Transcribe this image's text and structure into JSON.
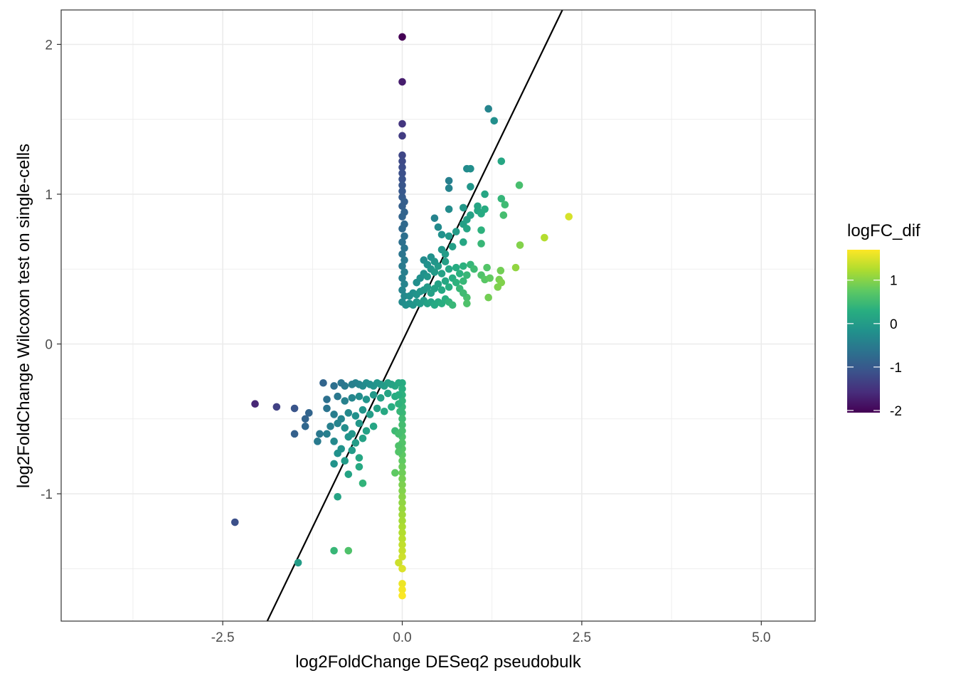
{
  "chart_data": {
    "type": "scatter",
    "title": "",
    "xlabel": "log2FoldChange DESeq2 pseudobulk",
    "ylabel": "log2FoldChange Wilcoxon test on single-cells",
    "xlim": [
      -4.75,
      5.75
    ],
    "ylim": [
      -1.85,
      2.23
    ],
    "x_ticks": [
      -2.5,
      0.0,
      2.5,
      5.0
    ],
    "x_tick_labels": [
      "-2.5",
      "0.0",
      "2.5",
      "5.0"
    ],
    "y_ticks": [
      -1,
      0,
      1,
      2
    ],
    "y_tick_labels": [
      "-1",
      "0",
      "1",
      "2"
    ],
    "grid": true,
    "theme": "bw",
    "reference_line": {
      "type": "line",
      "description": "fitted line",
      "x1": -1.88,
      "y1": -1.85,
      "x2": 2.23,
      "y2": 2.23
    },
    "color": {
      "legend_title": "logFC_dif",
      "legend_position": "right",
      "scale": "viridis",
      "range": [
        -2.05,
        1.7
      ],
      "ticks": [
        1,
        0,
        -1,
        -2
      ],
      "tick_labels": [
        "1",
        "0",
        "-1",
        "-2"
      ]
    },
    "points": [
      [
        0.0,
        2.05,
        -2.05
      ],
      [
        0.0,
        1.75,
        -1.75
      ],
      [
        0.0,
        1.47,
        -1.47
      ],
      [
        0.0,
        1.39,
        -1.39
      ],
      [
        0.0,
        1.26,
        -1.26
      ],
      [
        0.0,
        1.22,
        -1.22
      ],
      [
        0.0,
        1.18,
        -1.18
      ],
      [
        0.0,
        1.14,
        -1.14
      ],
      [
        0.0,
        1.1,
        -1.1
      ],
      [
        0.0,
        1.06,
        -1.06
      ],
      [
        0.0,
        1.02,
        -1.02
      ],
      [
        0.0,
        0.98,
        -0.98
      ],
      [
        0.03,
        0.95,
        -0.92
      ],
      [
        0.0,
        0.92,
        -0.92
      ],
      [
        0.03,
        0.88,
        -0.85
      ],
      [
        0.0,
        0.85,
        -0.85
      ],
      [
        0.03,
        0.8,
        -0.77
      ],
      [
        0.0,
        0.77,
        -0.77
      ],
      [
        0.03,
        0.72,
        -0.69
      ],
      [
        0.0,
        0.68,
        -0.68
      ],
      [
        0.03,
        0.64,
        -0.61
      ],
      [
        0.0,
        0.6,
        -0.6
      ],
      [
        0.03,
        0.56,
        -0.53
      ],
      [
        0.0,
        0.52,
        -0.52
      ],
      [
        0.03,
        0.48,
        -0.45
      ],
      [
        0.0,
        0.44,
        -0.44
      ],
      [
        0.03,
        0.4,
        -0.37
      ],
      [
        0.0,
        0.36,
        -0.36
      ],
      [
        0.03,
        0.32,
        -0.29
      ],
      [
        0.0,
        0.28,
        -0.28
      ],
      [
        0.05,
        0.26,
        -0.21
      ],
      [
        0.1,
        0.27,
        -0.17
      ],
      [
        0.15,
        0.26,
        -0.11
      ],
      [
        0.2,
        0.28,
        -0.08
      ],
      [
        0.25,
        0.27,
        -0.02
      ],
      [
        0.3,
        0.29,
        0.01
      ],
      [
        0.35,
        0.27,
        0.08
      ],
      [
        0.4,
        0.28,
        0.12
      ],
      [
        0.45,
        0.26,
        0.19
      ],
      [
        0.5,
        0.28,
        0.22
      ],
      [
        0.55,
        0.27,
        0.28
      ],
      [
        0.6,
        0.3,
        0.3
      ],
      [
        0.65,
        0.28,
        0.37
      ],
      [
        0.7,
        0.26,
        0.44
      ],
      [
        0.1,
        0.32,
        -0.22
      ],
      [
        0.15,
        0.34,
        -0.19
      ],
      [
        0.2,
        0.33,
        -0.13
      ],
      [
        0.25,
        0.35,
        -0.1
      ],
      [
        0.3,
        0.36,
        -0.06
      ],
      [
        0.35,
        0.38,
        -0.03
      ],
      [
        0.4,
        0.34,
        0.06
      ],
      [
        0.45,
        0.37,
        0.08
      ],
      [
        0.5,
        0.4,
        0.1
      ],
      [
        0.55,
        0.36,
        0.19
      ],
      [
        0.6,
        0.42,
        0.18
      ],
      [
        0.65,
        0.38,
        0.27
      ],
      [
        0.7,
        0.44,
        0.26
      ],
      [
        0.75,
        0.41,
        0.34
      ],
      [
        0.2,
        0.41,
        -0.21
      ],
      [
        0.25,
        0.44,
        -0.19
      ],
      [
        0.3,
        0.47,
        -0.17
      ],
      [
        0.35,
        0.45,
        -0.1
      ],
      [
        0.4,
        0.5,
        -0.1
      ],
      [
        0.45,
        0.48,
        -0.03
      ],
      [
        0.5,
        0.52,
        -0.02
      ],
      [
        0.55,
        0.47,
        0.08
      ],
      [
        0.6,
        0.55,
        0.05
      ],
      [
        0.65,
        0.5,
        0.15
      ],
      [
        0.3,
        0.56,
        -0.26
      ],
      [
        0.35,
        0.53,
        -0.18
      ],
      [
        0.4,
        0.58,
        -0.18
      ],
      [
        0.45,
        0.55,
        -0.1
      ],
      [
        0.55,
        0.63,
        -0.08
      ],
      [
        0.6,
        0.6,
        0.0
      ],
      [
        0.7,
        0.65,
        0.05
      ],
      [
        0.65,
        0.72,
        -0.07
      ],
      [
        0.75,
        0.75,
        0.0
      ],
      [
        0.75,
        0.51,
        0.24
      ],
      [
        0.8,
        0.47,
        0.33
      ],
      [
        0.85,
        0.52,
        0.33
      ],
      [
        0.9,
        0.46,
        0.44
      ],
      [
        0.95,
        0.53,
        0.42
      ],
      [
        1.0,
        0.5,
        0.5
      ],
      [
        1.1,
        0.46,
        0.64
      ],
      [
        1.15,
        0.43,
        0.72
      ],
      [
        0.8,
        0.37,
        0.43
      ],
      [
        0.85,
        0.42,
        0.43
      ],
      [
        0.9,
        0.31,
        0.59
      ],
      [
        0.9,
        0.27,
        0.63
      ],
      [
        0.85,
        0.34,
        0.51
      ],
      [
        0.55,
        0.73,
        -0.18
      ],
      [
        0.5,
        0.78,
        -0.28
      ],
      [
        0.45,
        0.84,
        -0.39
      ],
      [
        0.65,
        0.9,
        -0.25
      ],
      [
        0.65,
        1.04,
        -0.39
      ],
      [
        0.65,
        1.09,
        -0.44
      ],
      [
        0.85,
        0.8,
        0.05
      ],
      [
        0.85,
        0.68,
        0.17
      ],
      [
        0.85,
        0.91,
        -0.06
      ],
      [
        0.9,
        0.77,
        0.13
      ],
      [
        0.9,
        0.83,
        0.07
      ],
      [
        0.95,
        0.86,
        0.09
      ],
      [
        0.9,
        1.17,
        -0.27
      ],
      [
        0.95,
        1.17,
        -0.22
      ],
      [
        0.95,
        1.05,
        -0.1
      ],
      [
        1.05,
        0.92,
        0.13
      ],
      [
        1.05,
        0.89,
        0.16
      ],
      [
        1.1,
        0.87,
        0.23
      ],
      [
        1.15,
        0.9,
        0.25
      ],
      [
        1.15,
        1.0,
        0.15
      ],
      [
        1.1,
        0.76,
        0.34
      ],
      [
        1.1,
        0.67,
        0.43
      ],
      [
        1.2,
        1.57,
        -0.37
      ],
      [
        1.28,
        1.49,
        -0.21
      ],
      [
        1.38,
        1.22,
        0.16
      ],
      [
        1.38,
        0.97,
        0.41
      ],
      [
        1.43,
        0.93,
        0.5
      ],
      [
        1.41,
        0.86,
        0.55
      ],
      [
        1.63,
        1.06,
        0.57
      ],
      [
        1.64,
        0.66,
        0.98
      ],
      [
        1.98,
        0.71,
        1.27
      ],
      [
        2.32,
        0.85,
        1.47
      ],
      [
        1.18,
        0.51,
        0.67
      ],
      [
        1.22,
        0.44,
        0.78
      ],
      [
        1.35,
        0.43,
        0.92
      ],
      [
        1.37,
        0.49,
        0.88
      ],
      [
        1.58,
        0.51,
        1.07
      ],
      [
        1.38,
        0.41,
        0.97
      ],
      [
        1.33,
        0.38,
        0.95
      ],
      [
        1.2,
        0.31,
        0.89
      ],
      [
        0.0,
        -0.26,
        0.26
      ],
      [
        0.0,
        -0.3,
        0.3
      ],
      [
        0.0,
        -0.34,
        0.34
      ],
      [
        0.0,
        -0.38,
        0.38
      ],
      [
        0.0,
        -0.42,
        0.42
      ],
      [
        0.0,
        -0.46,
        0.46
      ],
      [
        0.0,
        -0.5,
        0.5
      ],
      [
        0.0,
        -0.54,
        0.54
      ],
      [
        0.0,
        -0.58,
        0.58
      ],
      [
        0.0,
        -0.62,
        0.62
      ],
      [
        0.0,
        -0.66,
        0.66
      ],
      [
        0.0,
        -0.7,
        0.7
      ],
      [
        0.0,
        -0.74,
        0.74
      ],
      [
        0.0,
        -0.78,
        0.78
      ],
      [
        0.0,
        -0.82,
        0.82
      ],
      [
        0.0,
        -0.86,
        0.86
      ],
      [
        0.0,
        -0.9,
        0.9
      ],
      [
        0.0,
        -0.94,
        0.94
      ],
      [
        0.0,
        -0.98,
        0.98
      ],
      [
        0.0,
        -1.02,
        1.02
      ],
      [
        0.0,
        -1.06,
        1.06
      ],
      [
        0.0,
        -1.1,
        1.1
      ],
      [
        0.0,
        -1.14,
        1.14
      ],
      [
        0.0,
        -1.18,
        1.18
      ],
      [
        0.0,
        -1.22,
        1.22
      ],
      [
        0.0,
        -1.26,
        1.26
      ],
      [
        0.0,
        -1.3,
        1.3
      ],
      [
        0.0,
        -1.34,
        1.34
      ],
      [
        0.0,
        -1.38,
        1.38
      ],
      [
        0.0,
        -1.42,
        1.42
      ],
      [
        0.0,
        -1.5,
        1.5
      ],
      [
        0.0,
        -1.6,
        1.6
      ],
      [
        0.0,
        -1.64,
        1.64
      ],
      [
        0.0,
        -1.68,
        1.68
      ],
      [
        -0.05,
        -1.46,
        1.41
      ],
      [
        -0.05,
        -0.68,
        0.63
      ],
      [
        -0.1,
        -0.86,
        0.76
      ],
      [
        -0.05,
        -0.72,
        0.67
      ],
      [
        -0.1,
        -0.58,
        0.48
      ],
      [
        -0.05,
        -0.6,
        0.55
      ],
      [
        -0.03,
        -0.45,
        0.42
      ],
      [
        -0.05,
        -0.26,
        0.21
      ],
      [
        -0.1,
        -0.28,
        0.18
      ],
      [
        -0.15,
        -0.27,
        0.12
      ],
      [
        -0.2,
        -0.26,
        0.06
      ],
      [
        -0.25,
        -0.28,
        0.03
      ],
      [
        -0.3,
        -0.27,
        -0.03
      ],
      [
        -0.35,
        -0.26,
        -0.09
      ],
      [
        -0.4,
        -0.28,
        -0.12
      ],
      [
        -0.45,
        -0.27,
        -0.18
      ],
      [
        -0.5,
        -0.26,
        -0.24
      ],
      [
        -0.55,
        -0.28,
        -0.27
      ],
      [
        -0.6,
        -0.27,
        -0.33
      ],
      [
        -0.65,
        -0.26,
        -0.39
      ],
      [
        -0.7,
        -0.27,
        -0.43
      ],
      [
        -0.8,
        -0.28,
        -0.52
      ],
      [
        -0.85,
        -0.26,
        -0.59
      ],
      [
        -0.95,
        -0.28,
        -0.67
      ],
      [
        -1.1,
        -0.26,
        -0.84
      ],
      [
        -0.1,
        -0.35,
        0.25
      ],
      [
        -0.2,
        -0.33,
        0.13
      ],
      [
        -0.3,
        -0.36,
        0.06
      ],
      [
        -0.4,
        -0.34,
        -0.06
      ],
      [
        -0.5,
        -0.37,
        -0.13
      ],
      [
        -0.6,
        -0.35,
        -0.25
      ],
      [
        -0.7,
        -0.36,
        -0.34
      ],
      [
        -0.8,
        -0.38,
        -0.42
      ],
      [
        -0.9,
        -0.35,
        -0.55
      ],
      [
        -1.05,
        -0.37,
        -0.68
      ],
      [
        -0.15,
        -0.42,
        0.27
      ],
      [
        -0.25,
        -0.45,
        0.2
      ],
      [
        -0.35,
        -0.43,
        0.08
      ],
      [
        -0.45,
        -0.47,
        0.02
      ],
      [
        -0.55,
        -0.44,
        -0.11
      ],
      [
        -0.65,
        -0.48,
        -0.17
      ],
      [
        -0.75,
        -0.46,
        -0.29
      ],
      [
        -0.85,
        -0.5,
        -0.35
      ],
      [
        -0.95,
        -0.47,
        -0.48
      ],
      [
        -1.05,
        -0.43,
        -0.62
      ],
      [
        -0.4,
        -0.55,
        0.15
      ],
      [
        -0.5,
        -0.58,
        0.08
      ],
      [
        -0.6,
        -0.53,
        -0.07
      ],
      [
        -0.7,
        -0.6,
        -0.1
      ],
      [
        -0.8,
        -0.56,
        -0.24
      ],
      [
        -0.9,
        -0.53,
        -0.37
      ],
      [
        -0.55,
        -0.63,
        0.08
      ],
      [
        -0.65,
        -0.66,
        0.01
      ],
      [
        -0.75,
        -0.62,
        -0.13
      ],
      [
        -0.85,
        -0.7,
        -0.15
      ],
      [
        -0.95,
        -0.65,
        -0.3
      ],
      [
        -1.05,
        -0.6,
        -0.45
      ],
      [
        -1.15,
        -0.6,
        -0.55
      ],
      [
        -1.0,
        -0.55,
        -0.45
      ],
      [
        -0.9,
        -0.73,
        -0.17
      ],
      [
        -0.8,
        -0.78,
        -0.02
      ],
      [
        -0.7,
        -0.71,
        -0.01
      ],
      [
        -0.6,
        -0.76,
        0.16
      ],
      [
        -0.6,
        -0.82,
        0.22
      ],
      [
        -0.75,
        -0.87,
        0.12
      ],
      [
        -0.95,
        -0.8,
        -0.15
      ],
      [
        -0.9,
        -1.02,
        0.12
      ],
      [
        -0.55,
        -0.93,
        0.38
      ],
      [
        -1.3,
        -0.46,
        -0.84
      ],
      [
        -1.35,
        -0.5,
        -0.85
      ],
      [
        -1.35,
        -0.55,
        -0.8
      ],
      [
        -1.5,
        -0.6,
        -0.9
      ],
      [
        -1.5,
        -0.43,
        -1.07
      ],
      [
        -1.75,
        -0.42,
        -1.33
      ],
      [
        -2.05,
        -0.4,
        -1.65
      ],
      [
        -1.18,
        -0.65,
        -0.53
      ],
      [
        -2.33,
        -1.19,
        -1.14
      ],
      [
        -0.95,
        -1.38,
        0.43
      ],
      [
        -0.75,
        -1.38,
        0.63
      ],
      [
        -1.45,
        -1.46,
        0.01
      ],
      [
        -0.05,
        -0.4,
        0.35
      ],
      [
        -0.05,
        -0.34,
        0.29
      ]
    ]
  }
}
